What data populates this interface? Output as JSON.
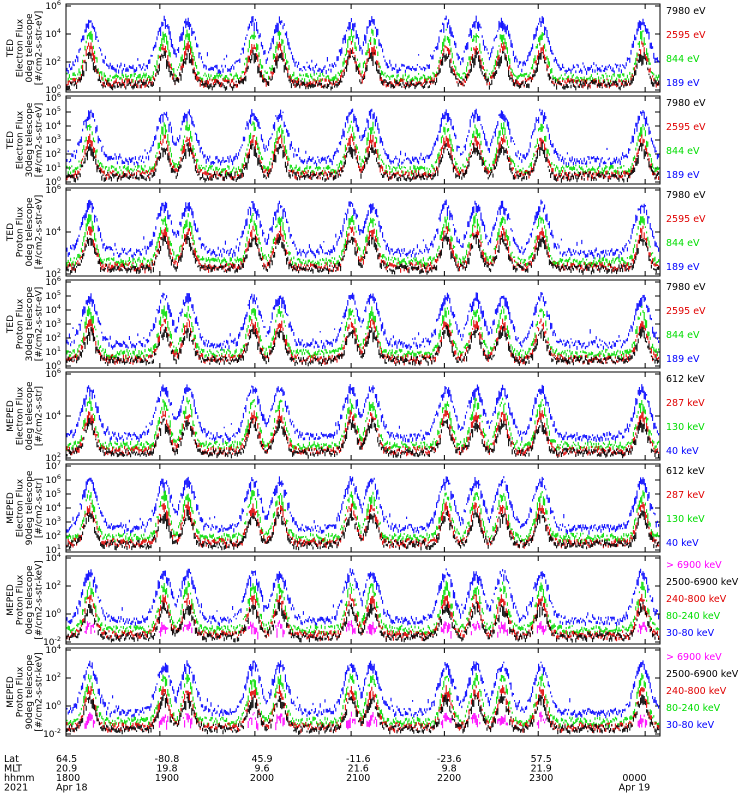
{
  "colors": {
    "blue": "#0000ff",
    "red": "#e00000",
    "green": "#00dd00",
    "black": "#000000",
    "magenta": "#ff00ff"
  },
  "chart_data": [
    {
      "type": "scatter",
      "ylabel": [
        "TED",
        "Electron Flux",
        "0deg telescope",
        "[#/cm2-s-str-eV]"
      ],
      "yscale": "log",
      "yticks": [
        "10^6",
        "10^4",
        "10^2",
        "10^0"
      ],
      "series": [
        {
          "name": "7980 eV",
          "color": "#000000"
        },
        {
          "name": "2595 eV",
          "color": "#e00000"
        },
        {
          "name": "844 eV",
          "color": "#00dd00"
        },
        {
          "name": "189 eV",
          "color": "#0000ff"
        }
      ]
    },
    {
      "type": "scatter",
      "ylabel": [
        "TED",
        "Electron Flux",
        "30deg telescope",
        "[#/cm2-s-str-eV]"
      ],
      "yscale": "log",
      "yticks": [
        "10^6",
        "10^5",
        "10^4",
        "10^3",
        "10^2",
        "10^1",
        "10^0"
      ],
      "series": [
        {
          "name": "7980 eV",
          "color": "#000000"
        },
        {
          "name": "2595 eV",
          "color": "#e00000"
        },
        {
          "name": "844 eV",
          "color": "#00dd00"
        },
        {
          "name": "189 eV",
          "color": "#0000ff"
        }
      ]
    },
    {
      "type": "scatter",
      "ylabel": [
        "TED",
        "Proton Flux",
        "0deg telescope",
        "[#/cm2-s-str-eV]"
      ],
      "yscale": "log",
      "yticks": [
        "10^6",
        "10^4",
        "10^2"
      ],
      "series": [
        {
          "name": "7980 eV",
          "color": "#000000"
        },
        {
          "name": "2595 eV",
          "color": "#e00000"
        },
        {
          "name": "844 eV",
          "color": "#00dd00"
        },
        {
          "name": "189 eV",
          "color": "#0000ff"
        }
      ]
    },
    {
      "type": "scatter",
      "ylabel": [
        "TED",
        "Proton Flux",
        "30deg telescope",
        "[#/cm2-s-str-eV]"
      ],
      "yscale": "log",
      "yticks": [
        "10^6",
        "10^5",
        "10^4",
        "10^3",
        "10^2",
        "10^1",
        "10^0"
      ],
      "series": [
        {
          "name": "7980 eV",
          "color": "#000000"
        },
        {
          "name": "2595 eV",
          "color": "#e00000"
        },
        {
          "name": "844 eV",
          "color": "#00dd00"
        },
        {
          "name": "189 eV",
          "color": "#0000ff"
        }
      ]
    },
    {
      "type": "scatter",
      "ylabel": [
        "MEPED",
        "Electron Flux",
        "0deg telescope",
        "[#/cm2-s-str]"
      ],
      "yscale": "log",
      "yticks": [
        "10^6",
        "10^4",
        "10^2"
      ],
      "series": [
        {
          "name": "612 keV",
          "color": "#000000"
        },
        {
          "name": "287 keV",
          "color": "#e00000"
        },
        {
          "name": "130 keV",
          "color": "#00dd00"
        },
        {
          "name": "40 keV",
          "color": "#0000ff"
        }
      ]
    },
    {
      "type": "scatter",
      "ylabel": [
        "MEPED",
        "Electron Flux",
        "90deg telescope",
        "[#/cm2-s-str]"
      ],
      "yscale": "log",
      "yticks": [
        "10^7",
        "10^6",
        "10^5",
        "10^4",
        "10^3",
        "10^2",
        "10^1"
      ],
      "series": [
        {
          "name": "612 keV",
          "color": "#000000"
        },
        {
          "name": "287 keV",
          "color": "#e00000"
        },
        {
          "name": "130 keV",
          "color": "#00dd00"
        },
        {
          "name": "40 keV",
          "color": "#0000ff"
        }
      ]
    },
    {
      "type": "scatter",
      "ylabel": [
        "MEPED",
        "Proton Flux",
        "0deg telescope",
        "[#/cm2-s-str-keV]"
      ],
      "yscale": "log",
      "yticks": [
        "10^4",
        "10^2",
        "10^0",
        "10^-2"
      ],
      "series": [
        {
          "name": "> 6900 keV",
          "color": "#ff00ff"
        },
        {
          "name": "2500-6900 keV",
          "color": "#000000"
        },
        {
          "name": "240-800 keV",
          "color": "#e00000"
        },
        {
          "name": "80-240 keV",
          "color": "#00dd00"
        },
        {
          "name": "30-80 keV",
          "color": "#0000ff"
        }
      ]
    },
    {
      "type": "scatter",
      "ylabel": [
        "MEPED",
        "Proton Flux",
        "90deg telescope",
        "[#/cm2-s-str-keV]"
      ],
      "yscale": "log",
      "yticks": [
        "10^4",
        "10^2",
        "10^0",
        "10^-2"
      ],
      "series": [
        {
          "name": "> 6900 keV",
          "color": "#ff00ff"
        },
        {
          "name": "2500-6900 keV",
          "color": "#000000"
        },
        {
          "name": "240-800 keV",
          "color": "#e00000"
        },
        {
          "name": "80-240 keV",
          "color": "#00dd00"
        },
        {
          "name": "30-80 keV",
          "color": "#0000ff"
        }
      ]
    }
  ],
  "footer": {
    "row_labels": [
      "Lat",
      "MLT",
      "hhmm",
      "2021"
    ],
    "columns": [
      {
        "lat": "64.5",
        "mlt": "20.9",
        "hhmm": "1800",
        "date": "Apr 18"
      },
      {
        "lat": "-80.8",
        "mlt": "19.8",
        "hhmm": "1900",
        "date": ""
      },
      {
        "lat": "45.9",
        "mlt": "9.6",
        "hhmm": "2000",
        "date": ""
      },
      {
        "lat": "-11.6",
        "mlt": "21.6",
        "hhmm": "2100",
        "date": ""
      },
      {
        "lat": "-23.6",
        "mlt": "9.8",
        "hhmm": "2200",
        "date": ""
      },
      {
        "lat": "57.5",
        "mlt": "21.9",
        "hhmm": "2300",
        "date": ""
      },
      {
        "lat": "",
        "mlt": "",
        "hhmm": "0000",
        "date": "Apr 19"
      }
    ]
  }
}
